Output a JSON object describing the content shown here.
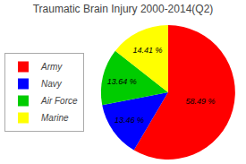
{
  "chart_data": {
    "type": "pie",
    "title": "Traumatic Brain Injury 2000-2014(Q2)",
    "categories": [
      "Army",
      "Navy",
      "Air Force",
      "Marine"
    ],
    "values": [
      58.49,
      13.46,
      13.64,
      14.41
    ],
    "value_labels": [
      "58.49 %",
      "13.46 %",
      "13.64 %",
      "14.41 %"
    ],
    "colors": [
      "#ff0000",
      "#0000ff",
      "#00cc00",
      "#ffff00"
    ],
    "data_labels": true,
    "legend": "left"
  }
}
